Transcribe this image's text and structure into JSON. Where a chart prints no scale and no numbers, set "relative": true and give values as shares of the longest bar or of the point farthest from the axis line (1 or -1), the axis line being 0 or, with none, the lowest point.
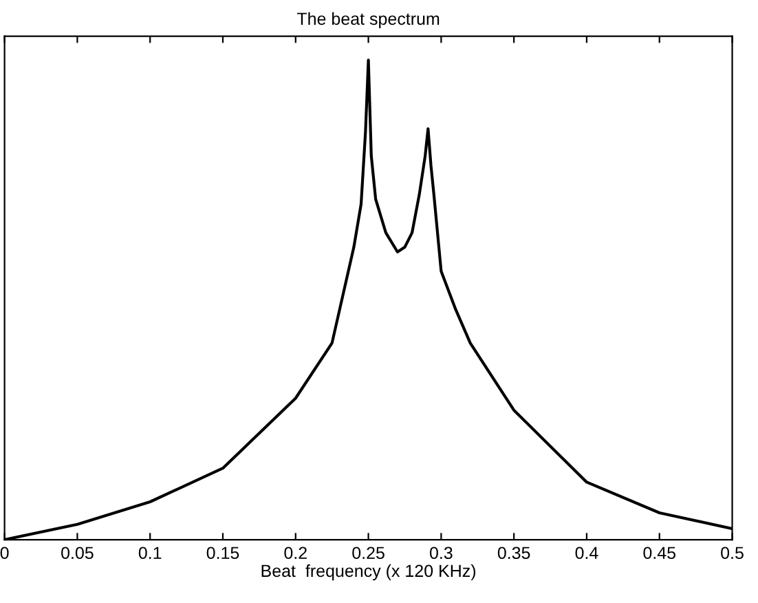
{
  "chart_data": {
    "type": "line",
    "title": "The beat spectrum",
    "xlabel": "Beat  frequency (x 120 KHz)",
    "relative": true,
    "xlim": [
      0,
      0.5
    ],
    "xticks": [
      0,
      0.05,
      0.1,
      0.15,
      0.2,
      0.25,
      0.3,
      0.35,
      0.4,
      0.45,
      0.5
    ],
    "series": [
      {
        "color": "#000000",
        "x": [
          0,
          0.05,
          0.1,
          0.15,
          0.2,
          0.225,
          0.24,
          0.245,
          0.248,
          0.25,
          0.252,
          0.255,
          0.262,
          0.27,
          0.275,
          0.28,
          0.285,
          0.289,
          0.291,
          0.293,
          0.295,
          0.3,
          0.31,
          0.32,
          0.35,
          0.4,
          0.45,
          0.5
        ],
        "values": [
          0,
          0.032,
          0.079,
          0.149,
          0.295,
          0.41,
          0.61,
          0.7,
          0.85,
          1.0,
          0.8,
          0.71,
          0.64,
          0.6,
          0.61,
          0.64,
          0.72,
          0.8,
          0.857,
          0.78,
          0.72,
          0.56,
          0.48,
          0.41,
          0.27,
          0.12,
          0.056,
          0.023
        ]
      }
    ],
    "grid": false,
    "legend": false
  }
}
